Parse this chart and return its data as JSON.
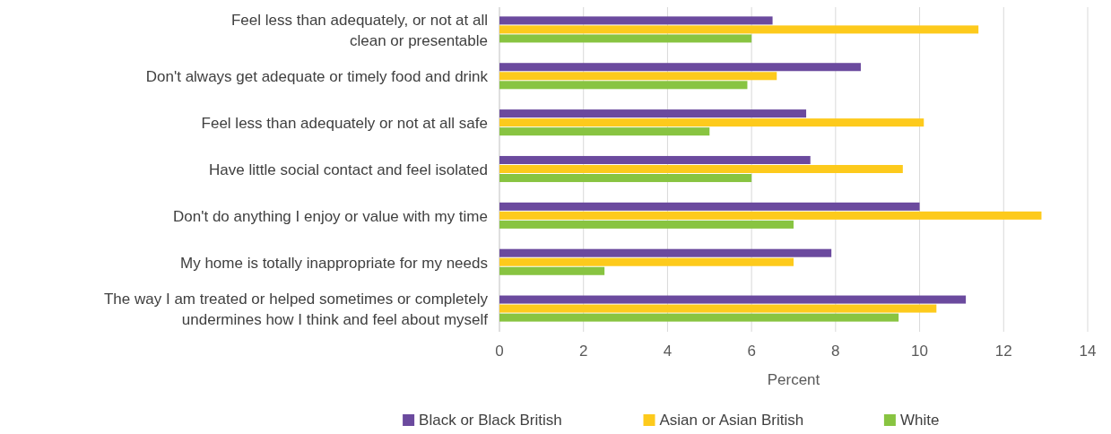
{
  "chart_data": {
    "type": "bar",
    "orientation": "horizontal",
    "xlabel": "Percent",
    "categories": [
      "Feel less than adequately, or not at all\nclean or presentable",
      "Don't always get adequate or timely food and drink",
      "Feel less than adequately or not at all safe",
      "Have little social contact and feel isolated",
      "Don't do anything I enjoy or value with my time",
      "My home is totally inappropriate for my needs",
      "The way I am treated or helped sometimes or completely\nundermines how I think and feel about myself"
    ],
    "series": [
      {
        "name": "Black or Black British",
        "color": "#6b4a9e",
        "values": [
          6.5,
          8.6,
          7.3,
          7.4,
          10.0,
          7.9,
          11.1
        ]
      },
      {
        "name": "Asian or Asian British",
        "color": "#fdca1c",
        "values": [
          11.4,
          6.6,
          10.1,
          9.6,
          12.9,
          7.0,
          10.4
        ]
      },
      {
        "name": "White",
        "color": "#88c441",
        "values": [
          6.0,
          5.9,
          5.0,
          6.0,
          7.0,
          2.5,
          9.5
        ]
      }
    ],
    "xlim": [
      0,
      14
    ],
    "xticks": [
      0,
      2,
      4,
      6,
      8,
      10,
      12,
      14
    ],
    "grid": "x",
    "legend": "bottom"
  }
}
